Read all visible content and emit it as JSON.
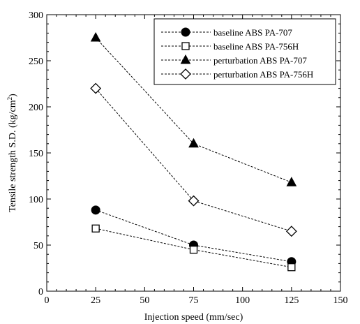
{
  "chart_data": {
    "type": "line",
    "xlabel": "Injection speed (mm/sec)",
    "ylabel_main": "Tensile strength S.D. (kg/cm",
    "ylabel_sup": "2",
    "ylabel_end": ")",
    "xlim": [
      0,
      150
    ],
    "ylim": [
      0,
      300
    ],
    "xticks": [
      0,
      25,
      50,
      75,
      100,
      125,
      150
    ],
    "yticks": [
      0,
      50,
      100,
      150,
      200,
      250,
      300
    ],
    "grid": false,
    "legend_position": "top-right",
    "x": [
      25,
      75,
      125
    ],
    "series": [
      {
        "name": "baseline ABS PA-707",
        "marker": "filled-circle",
        "values": [
          88,
          50,
          32
        ]
      },
      {
        "name": "baseline ABS PA-756H",
        "marker": "open-square",
        "values": [
          68,
          45,
          26
        ]
      },
      {
        "name": "perturbation ABS PA-707",
        "marker": "filled-triangle",
        "values": [
          275,
          160,
          118
        ]
      },
      {
        "name": "perturbation ABS PA-756H",
        "marker": "open-diamond",
        "values": [
          220,
          98,
          65
        ]
      }
    ]
  }
}
